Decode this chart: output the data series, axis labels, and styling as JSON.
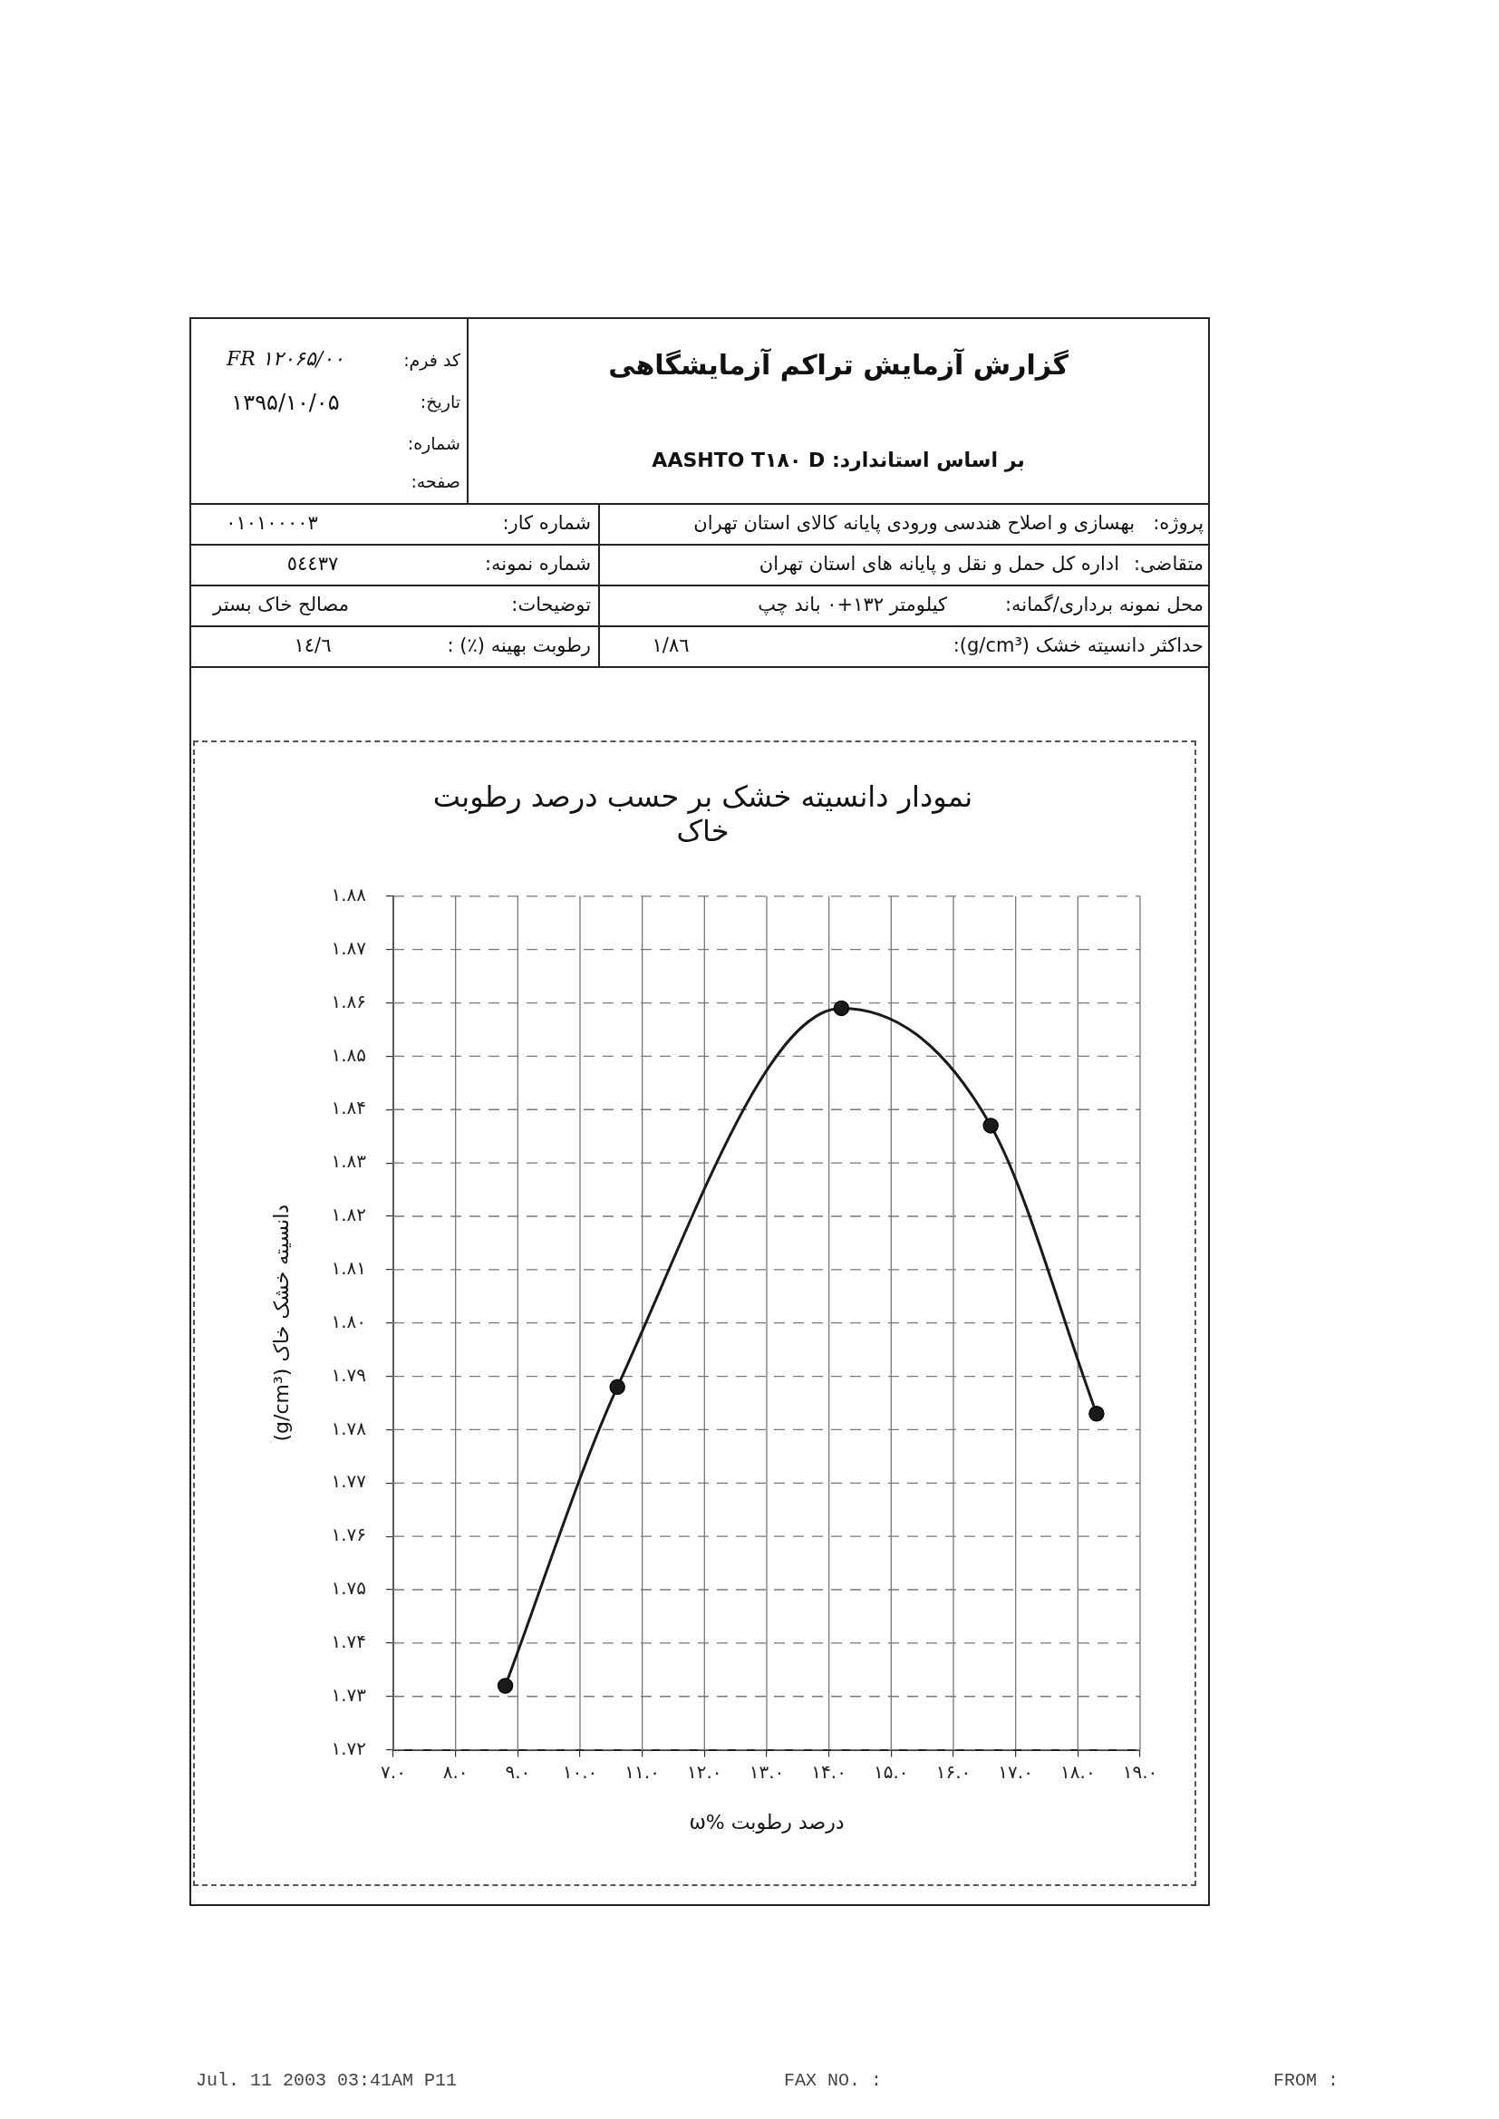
{
  "chart_data": {
    "type": "line",
    "title": "نمودار دانسیته خشک بر حسب درصد رطوبت خاک",
    "xlabel": "ω% درصد رطوبت",
    "ylabel": "(g/cm³) دانسیته خشک خاک",
    "x": [
      8.8,
      10.6,
      14.2,
      16.6,
      18.3
    ],
    "values": [
      1.732,
      1.788,
      1.859,
      1.837,
      1.783
    ],
    "color": "#1a1a1a",
    "marker": "circle",
    "line_style": "solid",
    "xlim": [
      7,
      19
    ],
    "xticks": [
      {
        "value": 7,
        "label": "۷.۰"
      },
      {
        "value": 8,
        "label": "۸.۰"
      },
      {
        "value": 9,
        "label": "۹.۰"
      },
      {
        "value": 10,
        "label": "۱۰.۰"
      },
      {
        "value": 11,
        "label": "۱۱.۰"
      },
      {
        "value": 12,
        "label": "۱۲.۰"
      },
      {
        "value": 13,
        "label": "۱۳.۰"
      },
      {
        "value": 14,
        "label": "۱۴.۰"
      },
      {
        "value": 15,
        "label": "۱۵.۰"
      },
      {
        "value": 16,
        "label": "۱۶.۰"
      },
      {
        "value": 17,
        "label": "۱۷.۰"
      },
      {
        "value": 18,
        "label": "۱۸.۰"
      },
      {
        "value": 19,
        "label": "۱۹.۰"
      }
    ],
    "ylim": [
      1.72,
      1.88
    ],
    "yticks": [
      {
        "value": 1.72,
        "label": "۱.۷۲"
      },
      {
        "value": 1.73,
        "label": "۱.۷۳"
      },
      {
        "value": 1.74,
        "label": "۱.۷۴"
      },
      {
        "value": 1.75,
        "label": "۱.۷۵"
      },
      {
        "value": 1.76,
        "label": "۱.۷۶"
      },
      {
        "value": 1.77,
        "label": "۱.۷۷"
      },
      {
        "value": 1.78,
        "label": "۱.۷۸"
      },
      {
        "value": 1.79,
        "label": "۱.۷۹"
      },
      {
        "value": 1.8,
        "label": "۱.۸۰"
      },
      {
        "value": 1.81,
        "label": "۱.۸۱"
      },
      {
        "value": 1.82,
        "label": "۱.۸۲"
      },
      {
        "value": 1.83,
        "label": "۱.۸۳"
      },
      {
        "value": 1.84,
        "label": "۱.۸۴"
      },
      {
        "value": 1.85,
        "label": "۱.۸۵"
      },
      {
        "value": 1.86,
        "label": "۱.۸۶"
      },
      {
        "value": 1.87,
        "label": "۱.۸۷"
      },
      {
        "value": 1.88,
        "label": "۱.۸۸"
      }
    ],
    "grid": true,
    "annotations": [
      "گزارش آزمایش تراکم آزمایشگاهی",
      "بر اساس استاندارد: AASHTO T۱۸۰ D",
      "کد فرم:",
      "FR ۱۲۰۶۵/۰۰",
      "تاریخ:",
      "۱۳۹۵/۱۰/۰۵",
      "شماره:",
      "صفحه:",
      "پروژه:",
      "بهسازی و اصلاح هندسی ورودی پایانه کالای استان تهران",
      "متقاضی:",
      "اداره کل حمل و نقل و پایانه های استان تهران",
      "محل نمونه برداری/گمانه:",
      "کیلومتر ۱۳۲+۰ باند چپ",
      "حداکثر دانسیته خشک (g/cm³):",
      "١/٨٦",
      "شماره کار:",
      "٠١٠١٠٠٠٠٣",
      "شماره نمونه:",
      "٥٤٤٣٧",
      "توضیحات:",
      "مصالح خاک بستر",
      "رطوبت بهینه (٪) :",
      "١٤/٦",
      "FROM :",
      "FAX NO. :",
      "Jul. 11 2003 03:41AM P11"
    ]
  }
}
